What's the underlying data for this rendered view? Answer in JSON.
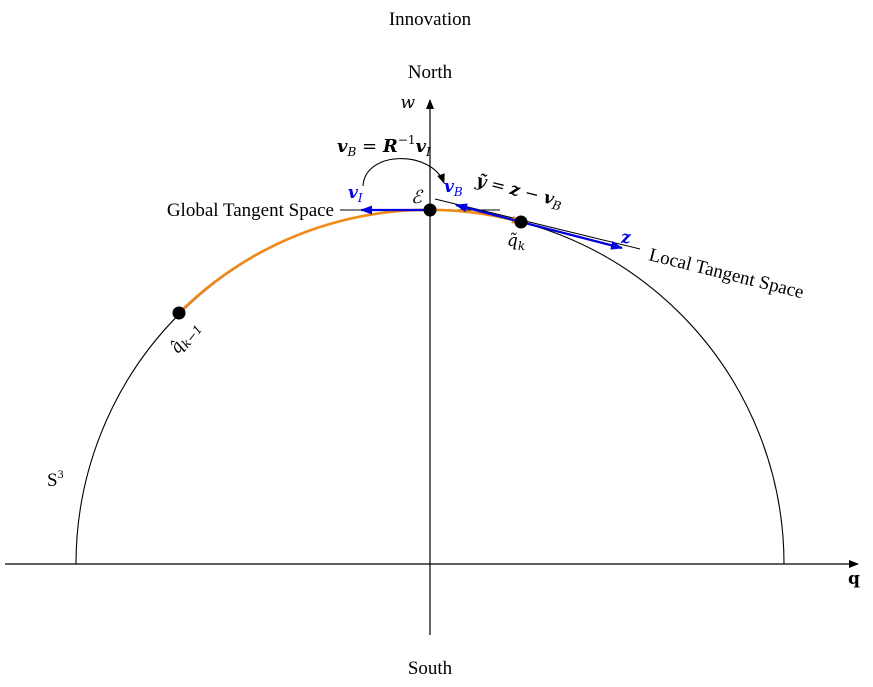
{
  "title": "Innovation",
  "north_label": "North",
  "south_label": "South",
  "w_axis_label": "w",
  "q_axis_label": "q",
  "sphere_label": {
    "base": "S",
    "sup": "3"
  },
  "global_tangent_label": "Global Tangent Space",
  "local_tangent_label": "Local Tangent Space",
  "origin_label": "ℰ",
  "transform_equation": {
    "lhs": "v",
    "lhs_sub": "B",
    "eq": " = ",
    "R": "R",
    "R_sup": "−1",
    "rhs": "v",
    "rhs_sub": "I"
  },
  "innovation_equation": {
    "y": "ỹ",
    "eq": " = ",
    "z": "z",
    "minus": " − ",
    "v": "v",
    "v_sub": "B"
  },
  "vector_vI": {
    "base": "v",
    "sub": "I"
  },
  "vector_vB": {
    "base": "v",
    "sub": "B"
  },
  "vector_z": "z",
  "point_qk": {
    "base": "q̃",
    "sub": "k"
  },
  "point_qk_minus_1": {
    "base": "q̂",
    "sub": "k−1"
  },
  "colors": {
    "axis": "#000000",
    "orange_arc": "#f08a18",
    "blue_vectors": "#0000e0",
    "points": "#000000"
  }
}
